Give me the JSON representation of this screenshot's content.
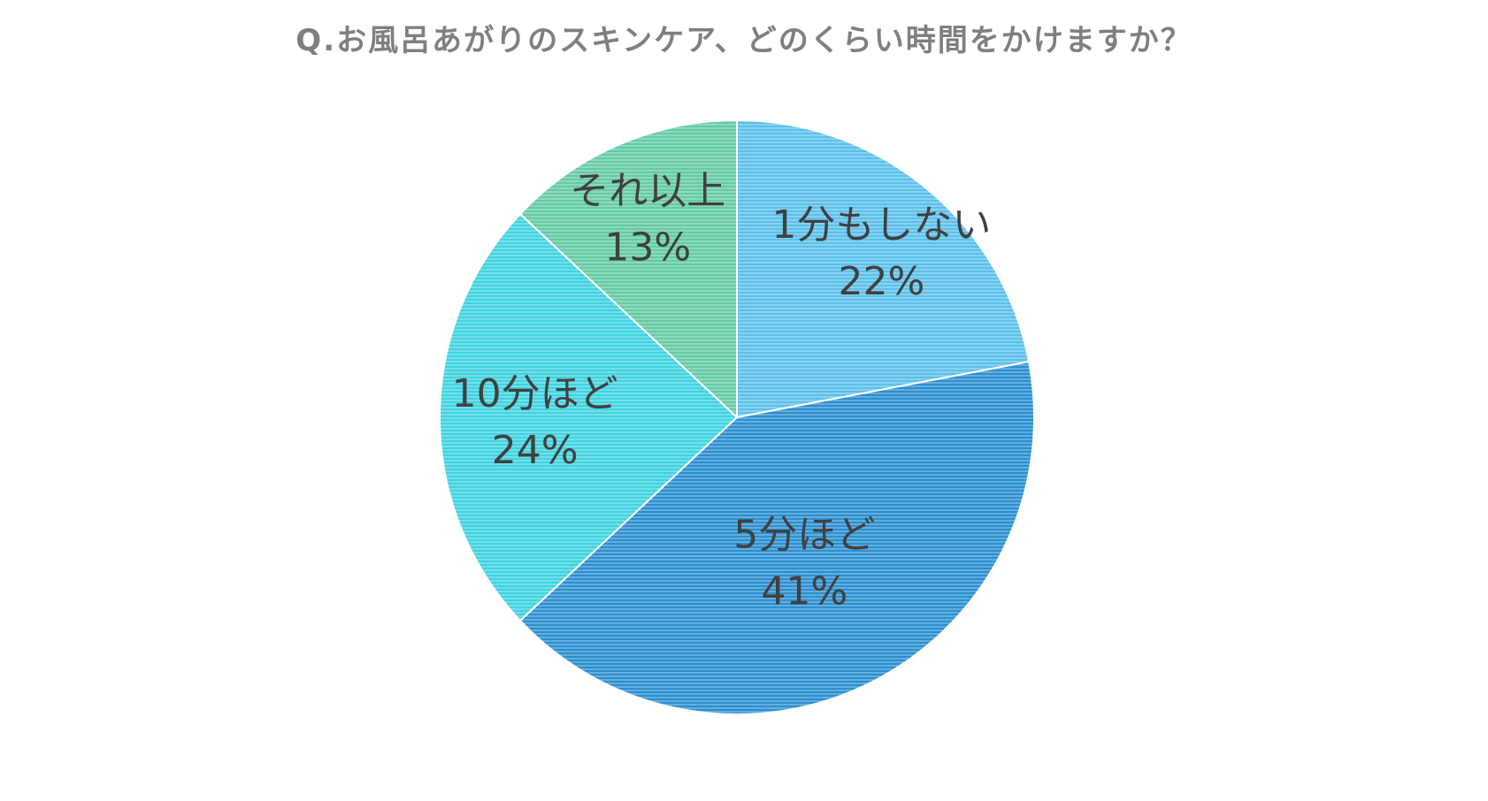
{
  "chart_data": {
    "type": "pie",
    "title": "Q.お風呂あがりのスキンケア、どのくらい時間をかけますか？",
    "categories": [
      "1分もしない",
      "5分ほど",
      "10分ほど",
      "それ以上"
    ],
    "values": [
      22,
      41,
      24,
      13
    ],
    "value_labels": [
      "22%",
      "41%",
      "24%",
      "13%"
    ],
    "colors": [
      "#5bc0eb",
      "#2a8fd0",
      "#3fd3e0",
      "#63cba3"
    ],
    "start_angle": "12 o'clock",
    "direction": "clockwise",
    "labels_position": "inside"
  }
}
